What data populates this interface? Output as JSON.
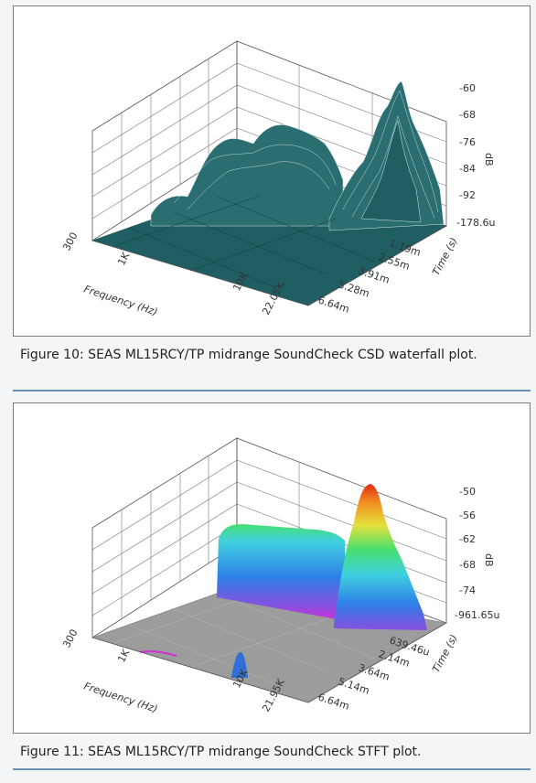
{
  "figures": [
    {
      "caption": "Figure 10: SEAS ML15RCY/TP midrange SoundCheck CSD waterfall plot.",
      "chart_data": {
        "type": "waterfall-3d",
        "xlabel": "Frequency (Hz)",
        "ylabel": "Time (s)",
        "zlabel": "dB",
        "x_ticks": [
          "300",
          "1K",
          "10K",
          "22.05K"
        ],
        "time_ticks": [
          "1.19m",
          "2.55m",
          "3.91m",
          "5.28m",
          "6.64m"
        ],
        "db_ticks": [
          "-60",
          "-68",
          "-76",
          "-84",
          "-92",
          "-178.6u"
        ],
        "surface_color": "#1f5f63"
      }
    },
    {
      "caption": "Figure 11: SEAS ML15RCY/TP midrange SoundCheck  STFT plot.",
      "chart_data": {
        "type": "stft-3d",
        "xlabel": "Frequency (Hz)",
        "ylabel": "Time (s)",
        "zlabel": "dB",
        "x_ticks": [
          "300",
          "1K",
          "10K",
          "21.95K"
        ],
        "time_ticks": [
          "639.46u",
          "2.14m",
          "3.64m",
          "5.14m",
          "6.64m"
        ],
        "db_ticks": [
          "-50",
          "-56",
          "-62",
          "-68",
          "-74",
          "-961.65u"
        ],
        "colormap": [
          "#d62dd6",
          "#2f7fe6",
          "#3fd0e0",
          "#46e070",
          "#e6e03a",
          "#f08a20",
          "#e02a10"
        ]
      }
    }
  ]
}
